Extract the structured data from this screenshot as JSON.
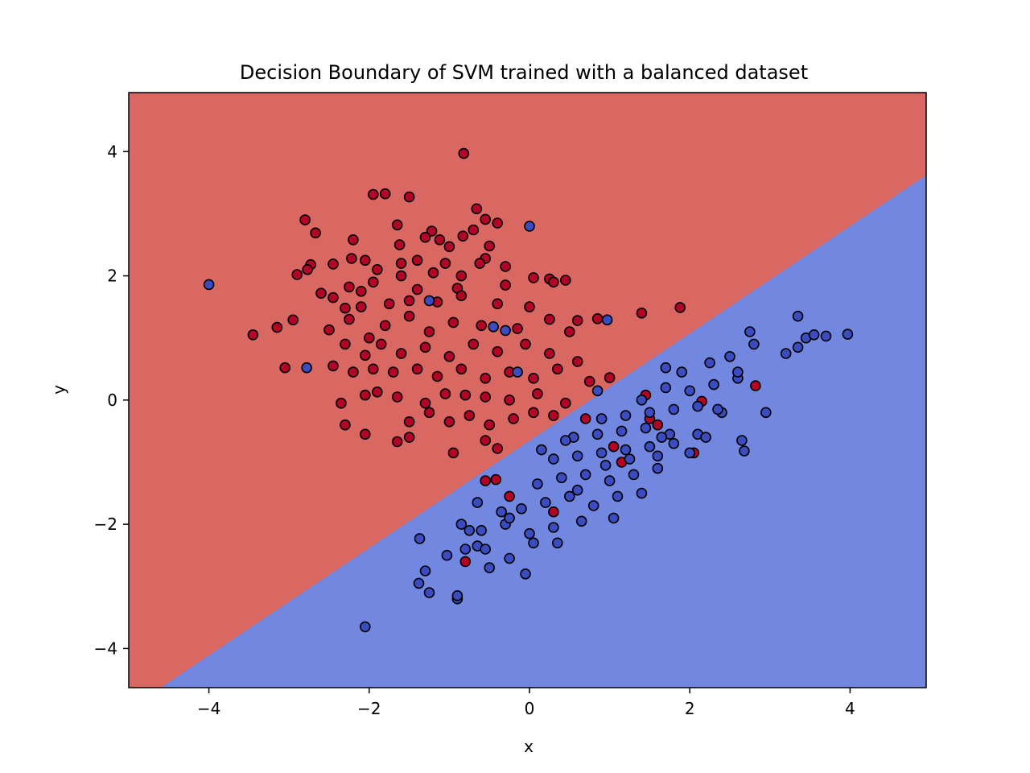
{
  "chart_data": {
    "type": "scatter",
    "title": "Decision Boundary of SVM trained with a balanced dataset",
    "xlabel": "x",
    "ylabel": "y",
    "xlim": [
      -5.0,
      4.95
    ],
    "ylim": [
      -4.63,
      4.95
    ],
    "xticks": [
      -4,
      -2,
      0,
      2,
      4
    ],
    "yticks": [
      -4,
      -2,
      0,
      2,
      4
    ],
    "xtick_labels": [
      "−4",
      "−2",
      "0",
      "2",
      "4"
    ],
    "ytick_labels": [
      "−4",
      "−2",
      "0",
      "2",
      "4"
    ],
    "grid": false,
    "legend": "none",
    "decision_boundary": {
      "points": [
        [
          -4.6,
          -4.63
        ],
        [
          4.95,
          3.62
        ]
      ],
      "region_above_color": "#d96762",
      "region_below_color": "#7288e0"
    },
    "series": [
      {
        "color": "#b40426",
        "points": [
          [
            -0.82,
            3.97
          ],
          [
            -1.95,
            3.31
          ],
          [
            -1.8,
            3.32
          ],
          [
            -1.5,
            3.27
          ],
          [
            -0.66,
            3.08
          ],
          [
            -2.8,
            2.9
          ],
          [
            -0.55,
            2.91
          ],
          [
            -0.4,
            2.85
          ],
          [
            -1.65,
            2.82
          ],
          [
            -2.67,
            2.69
          ],
          [
            -1.22,
            2.72
          ],
          [
            -0.83,
            2.64
          ],
          [
            -0.7,
            2.74
          ],
          [
            -1.3,
            2.62
          ],
          [
            -1.12,
            2.58
          ],
          [
            -2.2,
            2.58
          ],
          [
            -1.62,
            2.5
          ],
          [
            -0.5,
            2.48
          ],
          [
            -1.0,
            2.47
          ],
          [
            -2.22,
            2.28
          ],
          [
            -2.05,
            2.25
          ],
          [
            -0.55,
            2.28
          ],
          [
            -2.73,
            2.18
          ],
          [
            -2.45,
            2.19
          ],
          [
            -1.6,
            2.2
          ],
          [
            -1.4,
            2.25
          ],
          [
            -1.05,
            2.2
          ],
          [
            -0.62,
            2.2
          ],
          [
            -0.3,
            2.15
          ],
          [
            -2.9,
            2.02
          ],
          [
            -2.77,
            2.1
          ],
          [
            -1.9,
            2.1
          ],
          [
            -1.6,
            2.0
          ],
          [
            -1.2,
            2.05
          ],
          [
            -0.85,
            2.0
          ],
          [
            0.05,
            1.97
          ],
          [
            0.25,
            1.95
          ],
          [
            0.45,
            1.93
          ],
          [
            -2.6,
            1.72
          ],
          [
            -2.25,
            1.82
          ],
          [
            -2.1,
            1.75
          ],
          [
            -1.95,
            1.9
          ],
          [
            -1.4,
            1.78
          ],
          [
            -0.9,
            1.8
          ],
          [
            -0.3,
            1.85
          ],
          [
            0.3,
            1.9
          ],
          [
            -2.45,
            1.65
          ],
          [
            -2.3,
            1.48
          ],
          [
            -2.1,
            1.5
          ],
          [
            -1.75,
            1.55
          ],
          [
            -1.5,
            1.6
          ],
          [
            -1.15,
            1.58
          ],
          [
            -0.85,
            1.68
          ],
          [
            -0.4,
            1.55
          ],
          [
            0.0,
            1.5
          ],
          [
            0.6,
            1.28
          ],
          [
            0.85,
            1.31
          ],
          [
            1.4,
            1.4
          ],
          [
            1.88,
            1.49
          ],
          [
            -3.45,
            1.05
          ],
          [
            -3.15,
            1.17
          ],
          [
            -2.95,
            1.29
          ],
          [
            -2.5,
            1.13
          ],
          [
            -2.25,
            1.3
          ],
          [
            -2.0,
            1.0
          ],
          [
            -1.8,
            1.2
          ],
          [
            -1.5,
            1.35
          ],
          [
            -1.25,
            1.1
          ],
          [
            -0.95,
            1.25
          ],
          [
            -0.6,
            1.2
          ],
          [
            -0.15,
            1.15
          ],
          [
            0.25,
            1.3
          ],
          [
            0.5,
            1.1
          ],
          [
            -2.3,
            0.9
          ],
          [
            -2.05,
            0.72
          ],
          [
            -1.85,
            0.9
          ],
          [
            -1.6,
            0.75
          ],
          [
            -1.3,
            0.85
          ],
          [
            -1.0,
            0.7
          ],
          [
            -0.7,
            0.9
          ],
          [
            -0.4,
            0.78
          ],
          [
            -0.05,
            0.9
          ],
          [
            0.25,
            0.75
          ],
          [
            0.6,
            0.62
          ],
          [
            -3.05,
            0.52
          ],
          [
            -2.45,
            0.55
          ],
          [
            -2.2,
            0.45
          ],
          [
            -1.95,
            0.5
          ],
          [
            -1.7,
            0.45
          ],
          [
            -1.4,
            0.5
          ],
          [
            -1.15,
            0.38
          ],
          [
            -0.85,
            0.5
          ],
          [
            -0.55,
            0.35
          ],
          [
            -0.25,
            0.45
          ],
          [
            0.05,
            0.35
          ],
          [
            0.35,
            0.5
          ],
          [
            -2.05,
            0.08
          ],
          [
            -1.9,
            0.13
          ],
          [
            -1.65,
            0.05
          ],
          [
            -1.3,
            -0.05
          ],
          [
            -1.05,
            0.1
          ],
          [
            -0.8,
            0.08
          ],
          [
            -0.55,
            0.05
          ],
          [
            -0.25,
            0.0
          ],
          [
            0.1,
            0.1
          ],
          [
            0.45,
            -0.05
          ],
          [
            1.0,
            0.36
          ],
          [
            0.75,
            0.3
          ],
          [
            -2.35,
            -0.05
          ],
          [
            -2.3,
            -0.4
          ],
          [
            -2.05,
            -0.55
          ],
          [
            -1.5,
            -0.35
          ],
          [
            -1.25,
            -0.2
          ],
          [
            -1.0,
            -0.35
          ],
          [
            -0.75,
            -0.25
          ],
          [
            -0.5,
            -0.4
          ],
          [
            -0.2,
            -0.3
          ],
          [
            0.05,
            -0.2
          ],
          [
            0.3,
            -0.25
          ],
          [
            -1.65,
            -0.67
          ],
          [
            -1.5,
            -0.6
          ],
          [
            -0.95,
            -0.85
          ],
          [
            -0.55,
            -0.65
          ],
          [
            -0.4,
            -0.78
          ],
          [
            -0.55,
            -1.3
          ],
          [
            -0.42,
            -1.28
          ],
          [
            -0.25,
            -1.55
          ],
          [
            0.3,
            -1.8
          ],
          [
            -0.8,
            -2.6
          ],
          [
            0.7,
            -0.3
          ],
          [
            0.9,
            -0.3
          ],
          [
            1.05,
            -0.75
          ],
          [
            1.15,
            -1.0
          ],
          [
            1.45,
            0.08
          ],
          [
            1.5,
            -0.3
          ],
          [
            1.6,
            -0.4
          ],
          [
            2.05,
            -0.85
          ],
          [
            2.15,
            -0.02
          ],
          [
            2.82,
            0.23
          ]
        ]
      },
      {
        "color": "#3b4cc0",
        "points": [
          [
            -4.0,
            1.86
          ],
          [
            -2.78,
            0.52
          ],
          [
            -1.25,
            1.6
          ],
          [
            -0.3,
            1.12
          ],
          [
            -0.45,
            1.18
          ],
          [
            -0.15,
            0.45
          ],
          [
            0.0,
            2.8
          ],
          [
            0.97,
            1.29
          ],
          [
            -2.05,
            -3.65
          ],
          [
            -0.9,
            -3.2
          ],
          [
            -1.25,
            -3.1
          ],
          [
            -1.38,
            -2.95
          ],
          [
            -1.3,
            -2.75
          ],
          [
            -1.03,
            -2.5
          ],
          [
            -0.9,
            -3.15
          ],
          [
            -1.37,
            -2.23
          ],
          [
            -0.8,
            -2.4
          ],
          [
            -0.65,
            -2.35
          ],
          [
            -0.55,
            -2.4
          ],
          [
            -0.25,
            -2.55
          ],
          [
            -0.05,
            -2.8
          ],
          [
            -0.85,
            -2.0
          ],
          [
            -0.6,
            -2.1
          ],
          [
            -0.3,
            -2.0
          ],
          [
            0.0,
            -2.15
          ],
          [
            0.3,
            -2.05
          ],
          [
            -0.65,
            -1.65
          ],
          [
            -0.35,
            -1.8
          ],
          [
            -0.1,
            -1.75
          ],
          [
            0.2,
            -1.65
          ],
          [
            0.5,
            -1.55
          ],
          [
            0.8,
            -1.7
          ],
          [
            1.1,
            -1.55
          ],
          [
            1.4,
            -1.5
          ],
          [
            0.1,
            -1.35
          ],
          [
            0.4,
            -1.25
          ],
          [
            0.7,
            -1.2
          ],
          [
            1.0,
            -1.3
          ],
          [
            1.3,
            -1.2
          ],
          [
            1.6,
            -1.1
          ],
          [
            0.3,
            -0.95
          ],
          [
            0.6,
            -0.9
          ],
          [
            0.9,
            -0.85
          ],
          [
            1.2,
            -0.8
          ],
          [
            1.5,
            -0.75
          ],
          [
            1.8,
            -0.7
          ],
          [
            2.0,
            -0.85
          ],
          [
            0.55,
            -0.6
          ],
          [
            0.85,
            -0.55
          ],
          [
            1.15,
            -0.5
          ],
          [
            1.45,
            -0.45
          ],
          [
            1.75,
            -0.55
          ],
          [
            2.1,
            -0.55
          ],
          [
            0.9,
            -0.3
          ],
          [
            1.2,
            -0.25
          ],
          [
            1.5,
            -0.2
          ],
          [
            1.8,
            -0.15
          ],
          [
            2.1,
            -0.1
          ],
          [
            2.4,
            -0.2
          ],
          [
            1.7,
            0.2
          ],
          [
            2.0,
            0.15
          ],
          [
            2.3,
            0.25
          ],
          [
            2.6,
            0.35
          ],
          [
            1.4,
            0.0
          ],
          [
            1.9,
            0.45
          ],
          [
            2.25,
            0.6
          ],
          [
            2.5,
            0.7
          ],
          [
            2.8,
            0.9
          ],
          [
            2.95,
            -0.2
          ],
          [
            2.75,
            1.1
          ],
          [
            3.2,
            0.75
          ],
          [
            3.35,
            0.85
          ],
          [
            3.45,
            1.0
          ],
          [
            3.55,
            1.05
          ],
          [
            3.7,
            1.03
          ],
          [
            3.97,
            1.06
          ],
          [
            3.35,
            1.35
          ],
          [
            1.7,
            0.52
          ],
          [
            0.85,
            0.15
          ],
          [
            2.68,
            -0.82
          ],
          [
            2.65,
            -0.65
          ],
          [
            2.2,
            -0.6
          ],
          [
            1.6,
            -0.9
          ],
          [
            0.45,
            -0.65
          ],
          [
            0.15,
            -0.8
          ],
          [
            -0.25,
            -1.9
          ],
          [
            0.05,
            -2.3
          ],
          [
            -0.5,
            -2.7
          ],
          [
            -0.75,
            -2.1
          ],
          [
            0.35,
            -2.3
          ],
          [
            0.65,
            -1.95
          ],
          [
            1.05,
            -1.9
          ],
          [
            0.6,
            -1.45
          ],
          [
            0.95,
            -1.05
          ],
          [
            1.25,
            -0.95
          ],
          [
            1.65,
            -0.6
          ],
          [
            2.35,
            -0.15
          ],
          [
            2.6,
            0.45
          ]
        ]
      }
    ]
  }
}
